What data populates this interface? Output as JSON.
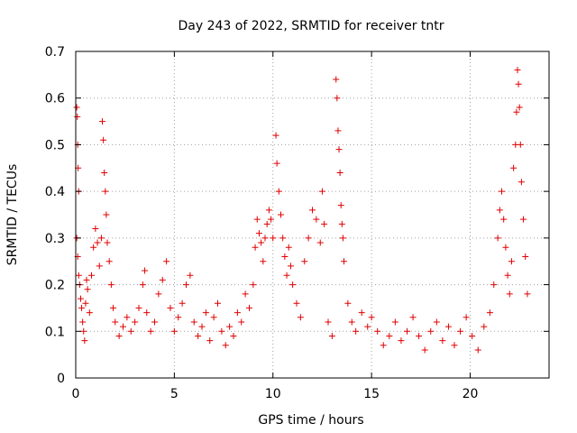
{
  "chart_data": {
    "type": "scatter",
    "title": "Day 243 of 2022, SRMTID for receiver tntr",
    "xlabel": "GPS time / hours",
    "ylabel": "SRMTID / TECUs",
    "xlim": [
      0,
      24
    ],
    "ylim": [
      0,
      0.7
    ],
    "x_ticks": [
      0,
      5,
      10,
      15,
      20
    ],
    "x_tick_labels": [
      "0",
      "5",
      "10",
      "15",
      "20"
    ],
    "y_ticks": [
      0,
      0.1,
      0.2,
      0.3,
      0.4,
      0.5,
      0.6,
      0.7
    ],
    "y_tick_labels": [
      "0",
      "0.1",
      "0.2",
      "0.3",
      "0.4",
      "0.5",
      "0.6",
      "0.7"
    ],
    "grid": true,
    "marker": "+",
    "color": "#e00000",
    "series": [
      {
        "name": "SRMTID",
        "points": [
          [
            0.05,
            0.58
          ],
          [
            0.08,
            0.56
          ],
          [
            0.1,
            0.5
          ],
          [
            0.12,
            0.45
          ],
          [
            0.15,
            0.4
          ],
          [
            0.05,
            0.3
          ],
          [
            0.1,
            0.26
          ],
          [
            0.15,
            0.22
          ],
          [
            0.2,
            0.2
          ],
          [
            0.25,
            0.17
          ],
          [
            0.3,
            0.15
          ],
          [
            0.35,
            0.12
          ],
          [
            0.4,
            0.1
          ],
          [
            0.45,
            0.08
          ],
          [
            0.5,
            0.16
          ],
          [
            0.55,
            0.21
          ],
          [
            0.6,
            0.19
          ],
          [
            0.7,
            0.14
          ],
          [
            0.8,
            0.22
          ],
          [
            0.9,
            0.28
          ],
          [
            1.0,
            0.32
          ],
          [
            1.1,
            0.29
          ],
          [
            1.2,
            0.24
          ],
          [
            1.3,
            0.3
          ],
          [
            1.35,
            0.55
          ],
          [
            1.4,
            0.51
          ],
          [
            1.45,
            0.44
          ],
          [
            1.5,
            0.4
          ],
          [
            1.55,
            0.35
          ],
          [
            1.6,
            0.29
          ],
          [
            1.7,
            0.25
          ],
          [
            1.8,
            0.2
          ],
          [
            1.9,
            0.15
          ],
          [
            2.0,
            0.12
          ],
          [
            2.2,
            0.09
          ],
          [
            2.4,
            0.11
          ],
          [
            2.6,
            0.13
          ],
          [
            2.8,
            0.1
          ],
          [
            3.0,
            0.12
          ],
          [
            3.2,
            0.15
          ],
          [
            3.4,
            0.2
          ],
          [
            3.5,
            0.23
          ],
          [
            3.6,
            0.14
          ],
          [
            3.8,
            0.1
          ],
          [
            4.0,
            0.12
          ],
          [
            4.2,
            0.18
          ],
          [
            4.4,
            0.21
          ],
          [
            4.6,
            0.25
          ],
          [
            4.8,
            0.15
          ],
          [
            5.0,
            0.1
          ],
          [
            5.2,
            0.13
          ],
          [
            5.4,
            0.16
          ],
          [
            5.6,
            0.2
          ],
          [
            5.8,
            0.22
          ],
          [
            6.0,
            0.12
          ],
          [
            6.2,
            0.09
          ],
          [
            6.4,
            0.11
          ],
          [
            6.6,
            0.14
          ],
          [
            6.8,
            0.08
          ],
          [
            7.0,
            0.13
          ],
          [
            7.2,
            0.16
          ],
          [
            7.4,
            0.1
          ],
          [
            7.6,
            0.07
          ],
          [
            7.8,
            0.11
          ],
          [
            8.0,
            0.09
          ],
          [
            8.2,
            0.14
          ],
          [
            8.4,
            0.12
          ],
          [
            8.6,
            0.18
          ],
          [
            8.8,
            0.15
          ],
          [
            9.0,
            0.2
          ],
          [
            9.1,
            0.28
          ],
          [
            9.2,
            0.34
          ],
          [
            9.3,
            0.31
          ],
          [
            9.4,
            0.29
          ],
          [
            9.5,
            0.25
          ],
          [
            9.6,
            0.3
          ],
          [
            9.7,
            0.33
          ],
          [
            9.8,
            0.36
          ],
          [
            9.9,
            0.34
          ],
          [
            10.0,
            0.3
          ],
          [
            10.15,
            0.52
          ],
          [
            10.2,
            0.46
          ],
          [
            10.3,
            0.4
          ],
          [
            10.4,
            0.35
          ],
          [
            10.5,
            0.3
          ],
          [
            10.6,
            0.26
          ],
          [
            10.7,
            0.22
          ],
          [
            10.8,
            0.28
          ],
          [
            10.9,
            0.24
          ],
          [
            11.0,
            0.2
          ],
          [
            11.2,
            0.16
          ],
          [
            11.4,
            0.13
          ],
          [
            11.6,
            0.25
          ],
          [
            11.8,
            0.3
          ],
          [
            12.0,
            0.36
          ],
          [
            12.2,
            0.34
          ],
          [
            12.4,
            0.29
          ],
          [
            12.5,
            0.4
          ],
          [
            12.6,
            0.33
          ],
          [
            12.8,
            0.12
          ],
          [
            13.0,
            0.09
          ],
          [
            13.2,
            0.64
          ],
          [
            13.25,
            0.6
          ],
          [
            13.3,
            0.53
          ],
          [
            13.35,
            0.49
          ],
          [
            13.4,
            0.44
          ],
          [
            13.45,
            0.37
          ],
          [
            13.5,
            0.33
          ],
          [
            13.55,
            0.3
          ],
          [
            13.6,
            0.25
          ],
          [
            13.8,
            0.16
          ],
          [
            14.0,
            0.12
          ],
          [
            14.2,
            0.1
          ],
          [
            14.5,
            0.14
          ],
          [
            14.8,
            0.11
          ],
          [
            15.0,
            0.13
          ],
          [
            15.3,
            0.1
          ],
          [
            15.6,
            0.07
          ],
          [
            15.9,
            0.09
          ],
          [
            16.2,
            0.12
          ],
          [
            16.5,
            0.08
          ],
          [
            16.8,
            0.1
          ],
          [
            17.1,
            0.13
          ],
          [
            17.4,
            0.09
          ],
          [
            17.7,
            0.06
          ],
          [
            18.0,
            0.1
          ],
          [
            18.3,
            0.12
          ],
          [
            18.6,
            0.08
          ],
          [
            18.9,
            0.11
          ],
          [
            19.2,
            0.07
          ],
          [
            19.5,
            0.1
          ],
          [
            19.8,
            0.13
          ],
          [
            20.1,
            0.09
          ],
          [
            20.4,
            0.06
          ],
          [
            20.7,
            0.11
          ],
          [
            21.0,
            0.14
          ],
          [
            21.2,
            0.2
          ],
          [
            21.4,
            0.3
          ],
          [
            21.5,
            0.36
          ],
          [
            21.6,
            0.4
          ],
          [
            21.7,
            0.34
          ],
          [
            21.8,
            0.28
          ],
          [
            21.9,
            0.22
          ],
          [
            22.0,
            0.18
          ],
          [
            22.1,
            0.25
          ],
          [
            22.2,
            0.45
          ],
          [
            22.3,
            0.5
          ],
          [
            22.35,
            0.57
          ],
          [
            22.4,
            0.66
          ],
          [
            22.45,
            0.63
          ],
          [
            22.5,
            0.58
          ],
          [
            22.55,
            0.5
          ],
          [
            22.6,
            0.42
          ],
          [
            22.7,
            0.34
          ],
          [
            22.8,
            0.26
          ],
          [
            22.9,
            0.18
          ]
        ]
      }
    ]
  }
}
